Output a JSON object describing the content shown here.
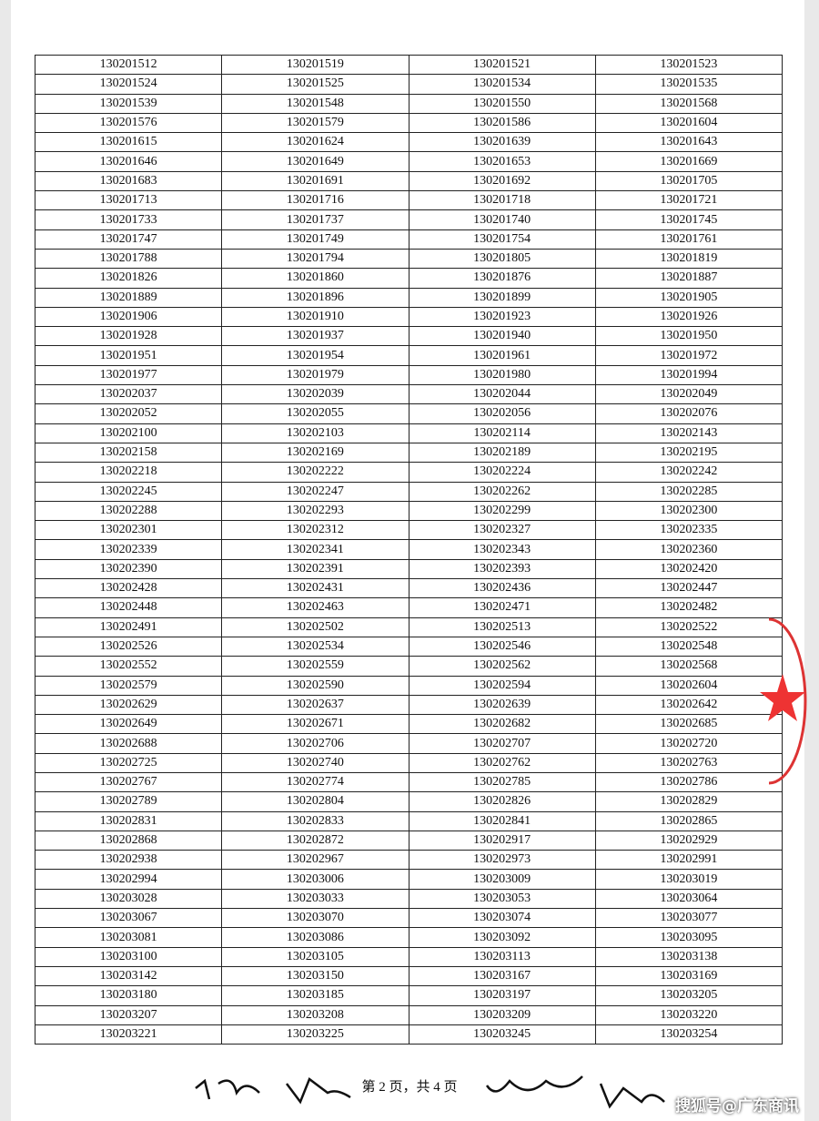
{
  "table": {
    "rows": [
      [
        "130201512",
        "130201519",
        "130201521",
        "130201523"
      ],
      [
        "130201524",
        "130201525",
        "130201534",
        "130201535"
      ],
      [
        "130201539",
        "130201548",
        "130201550",
        "130201568"
      ],
      [
        "130201576",
        "130201579",
        "130201586",
        "130201604"
      ],
      [
        "130201615",
        "130201624",
        "130201639",
        "130201643"
      ],
      [
        "130201646",
        "130201649",
        "130201653",
        "130201669"
      ],
      [
        "130201683",
        "130201691",
        "130201692",
        "130201705"
      ],
      [
        "130201713",
        "130201716",
        "130201718",
        "130201721"
      ],
      [
        "130201733",
        "130201737",
        "130201740",
        "130201745"
      ],
      [
        "130201747",
        "130201749",
        "130201754",
        "130201761"
      ],
      [
        "130201788",
        "130201794",
        "130201805",
        "130201819"
      ],
      [
        "130201826",
        "130201860",
        "130201876",
        "130201887"
      ],
      [
        "130201889",
        "130201896",
        "130201899",
        "130201905"
      ],
      [
        "130201906",
        "130201910",
        "130201923",
        "130201926"
      ],
      [
        "130201928",
        "130201937",
        "130201940",
        "130201950"
      ],
      [
        "130201951",
        "130201954",
        "130201961",
        "130201972"
      ],
      [
        "130201977",
        "130201979",
        "130201980",
        "130201994"
      ],
      [
        "130202037",
        "130202039",
        "130202044",
        "130202049"
      ],
      [
        "130202052",
        "130202055",
        "130202056",
        "130202076"
      ],
      [
        "130202100",
        "130202103",
        "130202114",
        "130202143"
      ],
      [
        "130202158",
        "130202169",
        "130202189",
        "130202195"
      ],
      [
        "130202218",
        "130202222",
        "130202224",
        "130202242"
      ],
      [
        "130202245",
        "130202247",
        "130202262",
        "130202285"
      ],
      [
        "130202288",
        "130202293",
        "130202299",
        "130202300"
      ],
      [
        "130202301",
        "130202312",
        "130202327",
        "130202335"
      ],
      [
        "130202339",
        "130202341",
        "130202343",
        "130202360"
      ],
      [
        "130202390",
        "130202391",
        "130202393",
        "130202420"
      ],
      [
        "130202428",
        "130202431",
        "130202436",
        "130202447"
      ],
      [
        "130202448",
        "130202463",
        "130202471",
        "130202482"
      ],
      [
        "130202491",
        "130202502",
        "130202513",
        "130202522"
      ],
      [
        "130202526",
        "130202534",
        "130202546",
        "130202548"
      ],
      [
        "130202552",
        "130202559",
        "130202562",
        "130202568"
      ],
      [
        "130202579",
        "130202590",
        "130202594",
        "130202604"
      ],
      [
        "130202629",
        "130202637",
        "130202639",
        "130202642"
      ],
      [
        "130202649",
        "130202671",
        "130202682",
        "130202685"
      ],
      [
        "130202688",
        "130202706",
        "130202707",
        "130202720"
      ],
      [
        "130202725",
        "130202740",
        "130202762",
        "130202763"
      ],
      [
        "130202767",
        "130202774",
        "130202785",
        "130202786"
      ],
      [
        "130202789",
        "130202804",
        "130202826",
        "130202829"
      ],
      [
        "130202831",
        "130202833",
        "130202841",
        "130202865"
      ],
      [
        "130202868",
        "130202872",
        "130202917",
        "130202929"
      ],
      [
        "130202938",
        "130202967",
        "130202973",
        "130202991"
      ],
      [
        "130202994",
        "130203006",
        "130203009",
        "130203019"
      ],
      [
        "130203028",
        "130203033",
        "130203053",
        "130203064"
      ],
      [
        "130203067",
        "130203070",
        "130203074",
        "130203077"
      ],
      [
        "130203081",
        "130203086",
        "130203092",
        "130203095"
      ],
      [
        "130203100",
        "130203105",
        "130203113",
        "130203138"
      ],
      [
        "130203142",
        "130203150",
        "130203167",
        "130203169"
      ],
      [
        "130203180",
        "130203185",
        "130203197",
        "130203205"
      ],
      [
        "130203207",
        "130203208",
        "130203209",
        "130203220"
      ],
      [
        "130203221",
        "130203225",
        "130203245",
        "130203254"
      ]
    ]
  },
  "footer": {
    "page": "第 2 页，共 4 页"
  },
  "watermark": "搜狐号@广东商讯"
}
